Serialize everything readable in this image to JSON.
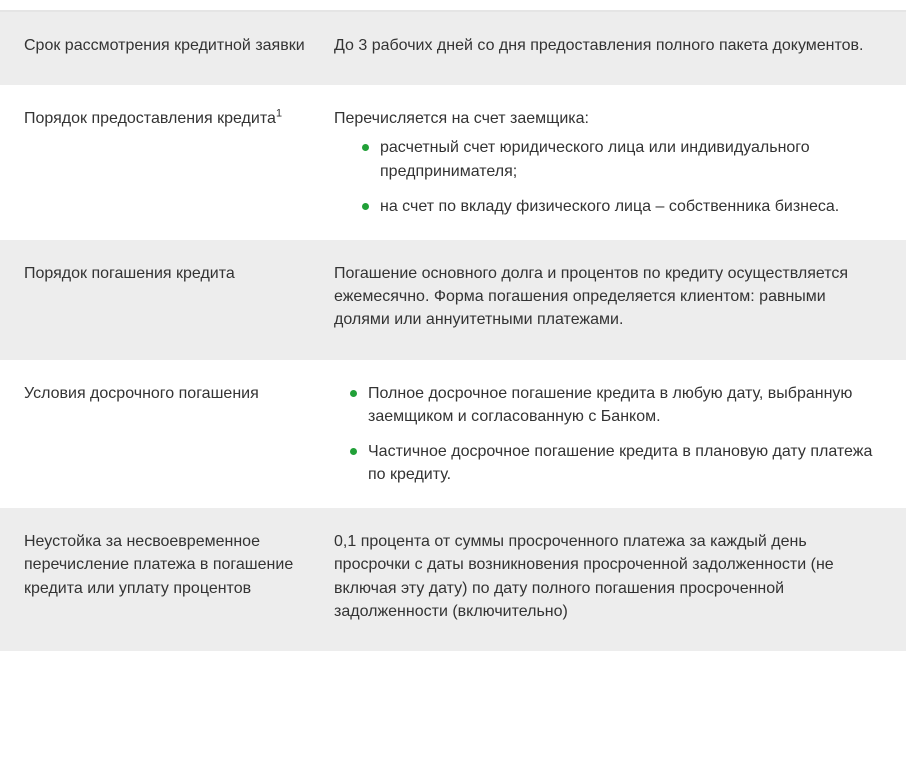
{
  "colors": {
    "bullet": "#21a038",
    "shaded_bg": "#ededed",
    "text": "#333333",
    "border": "#e5e5e5"
  },
  "rows": [
    {
      "shaded": true,
      "label": "Срок рассмотрения кредитной заявки",
      "label_sup": "",
      "value_text": "До 3 рабочих дней со дня предоставления полного пакета документов.",
      "bullets": []
    },
    {
      "shaded": false,
      "label": "Порядок предоставления кредита",
      "label_sup": "1",
      "value_text": "Перечисляется на счет заемщика:",
      "bullets": [
        "расчетный счет юридического лица или индивидуального предпринимателя;",
        "на счет по вкладу физического лица – собственника бизнеса."
      ]
    },
    {
      "shaded": true,
      "label": "Порядок погашения кредита",
      "label_sup": "",
      "value_text": "Погашение основного долга и процентов по кредиту осуществляется ежемесячно. Форма погашения определяется клиентом: равными долями или аннуитетными платежами.",
      "bullets": []
    },
    {
      "shaded": false,
      "label": "Условия досрочного погашения",
      "label_sup": "",
      "value_text": "",
      "bullets": [
        "Полное досрочное погашение кредита в любую дату, выбранную заемщиком и согласованную с Банком.",
        "Частичное досрочное погашение кредита в плановую дату платежа по кредиту."
      ]
    },
    {
      "shaded": true,
      "label": "Неустойка за несвоевременное перечисление платежа в погашение кредита или уплату процентов",
      "label_sup": "",
      "value_text": "0,1 процента от суммы просроченного платежа за каждый день просрочки с даты возникновения просроченной задолженности (не включая эту дату) по дату полного погашения просроченной задолженности (включительно)",
      "bullets": []
    }
  ]
}
